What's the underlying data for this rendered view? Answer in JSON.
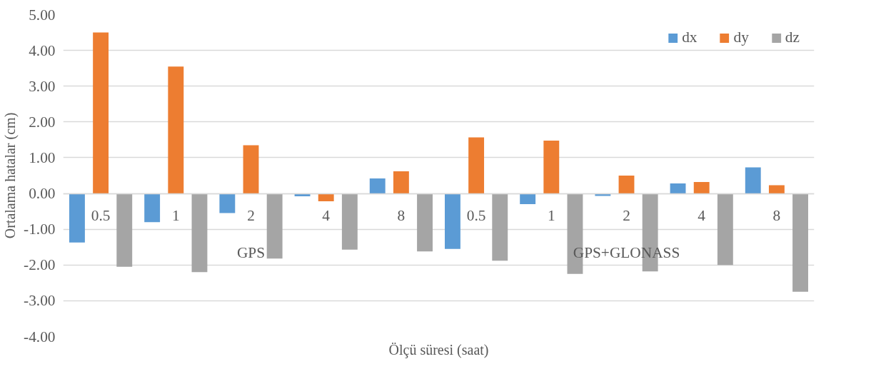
{
  "chart_data": {
    "type": "bar",
    "ylabel": "Ortalama hatalar (cm)",
    "xlabel": "Ölçü süresi (saat)",
    "categories": [
      "0.5",
      "1",
      "2",
      "4",
      "8",
      "0.5",
      "1",
      "2",
      "4",
      "8"
    ],
    "annotations": [
      "GPS",
      "GPS+GLONASS"
    ],
    "series": [
      {
        "name": "dx",
        "color": "#5b9bd5",
        "values": [
          -1.37,
          -0.8,
          -0.55,
          -0.08,
          0.42,
          -1.55,
          -0.3,
          -0.07,
          0.28,
          0.73
        ]
      },
      {
        "name": "dy",
        "color": "#ed7d31",
        "values": [
          4.5,
          3.55,
          1.35,
          -0.22,
          0.62,
          1.57,
          1.48,
          0.5,
          0.32,
          0.23
        ]
      },
      {
        "name": "dz",
        "color": "#a5a5a5",
        "values": [
          -2.05,
          -2.2,
          -1.82,
          -1.57,
          -1.62,
          -1.88,
          -2.25,
          -2.18,
          -2.0,
          -2.75
        ]
      }
    ],
    "ylim": [
      -4,
      5
    ],
    "yticks": [
      {
        "value": 5,
        "label": "5.00"
      },
      {
        "value": 4,
        "label": "4.00"
      },
      {
        "value": 3,
        "label": "3.00"
      },
      {
        "value": 2,
        "label": "2.00"
      },
      {
        "value": 1,
        "label": "1.00"
      },
      {
        "value": 0,
        "label": "0.00"
      },
      {
        "value": -1,
        "label": "-1.00"
      },
      {
        "value": -2,
        "label": "-2.00"
      },
      {
        "value": -3,
        "label": "-3.00"
      },
      {
        "value": -4,
        "label": "-4.00"
      }
    ],
    "grid": "y",
    "legend": "top right"
  }
}
